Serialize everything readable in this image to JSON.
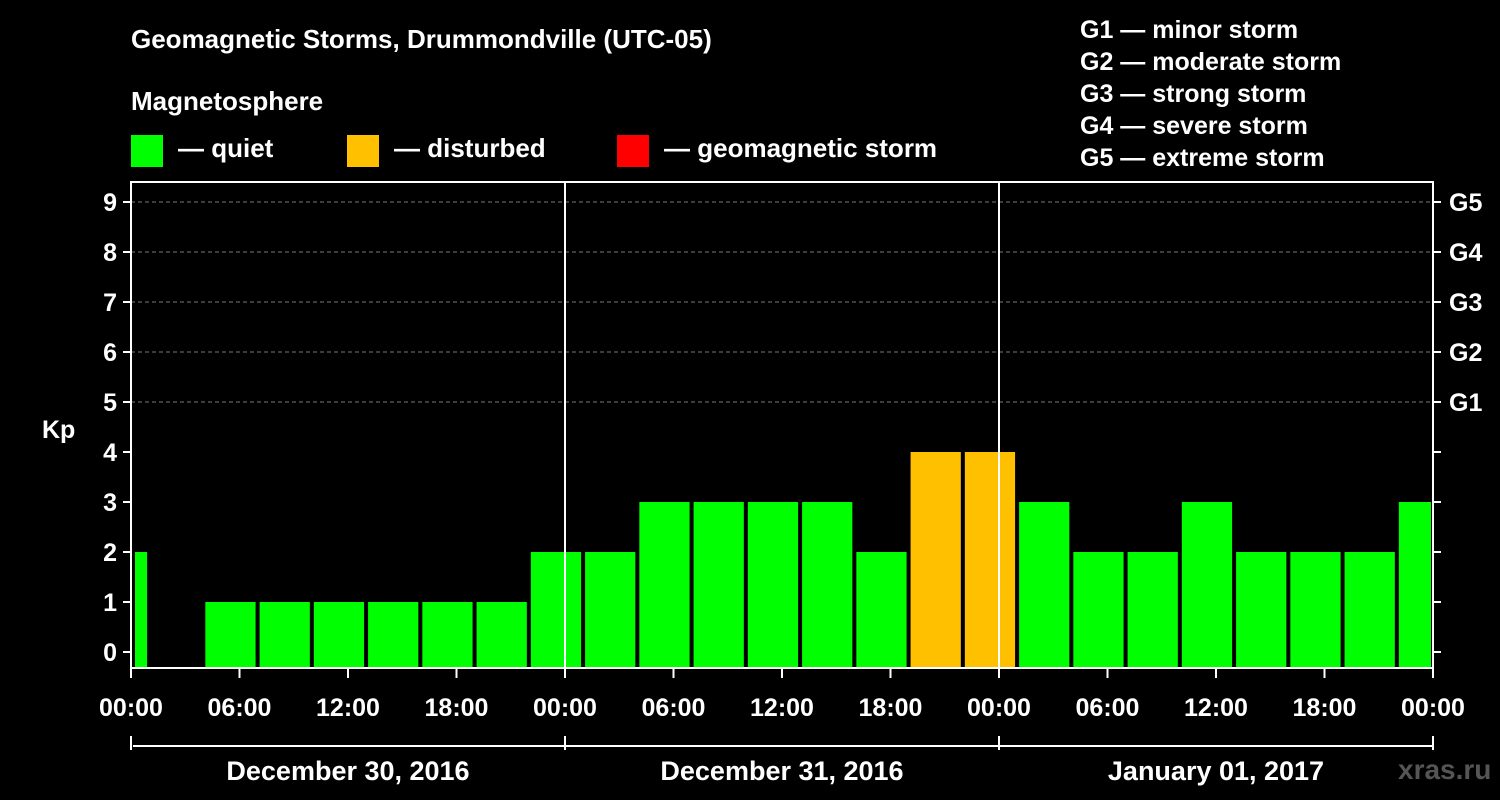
{
  "title": "Geomagnetic Storms, Drummondville (UTC-05)",
  "magnetosphere_label": "Magnetosphere",
  "legend": [
    {
      "label": "— quiet",
      "color": "#00ff00"
    },
    {
      "label": "— disturbed",
      "color": "#ffc000"
    },
    {
      "label": "— geomagnetic storm",
      "color": "#ff0000"
    }
  ],
  "g_legend": [
    "G1 — minor storm",
    "G2 — moderate storm",
    "G3 — strong storm",
    "G4 — severe storm",
    "G5 — extreme storm"
  ],
  "watermark": "xras.ru",
  "chart_data": {
    "type": "bar",
    "ylabel": "Kp",
    "ylim": [
      0,
      9
    ],
    "y_ticks": [
      "0",
      "1",
      "2",
      "3",
      "4",
      "5",
      "6",
      "7",
      "8",
      "9"
    ],
    "right_ticks": [
      {
        "value": 5,
        "label": "G1"
      },
      {
        "value": 6,
        "label": "G2"
      },
      {
        "value": 7,
        "label": "G3"
      },
      {
        "value": 8,
        "label": "G4"
      },
      {
        "value": 9,
        "label": "G5"
      }
    ],
    "grid": "dashed horizontal lines at Kp 5 to 9",
    "x_range_hours": [
      0,
      72
    ],
    "x_tick_labels": [
      "00:00",
      "06:00",
      "12:00",
      "18:00",
      "00:00",
      "06:00",
      "12:00",
      "18:00",
      "00:00",
      "06:00",
      "12:00",
      "18:00",
      "00:00"
    ],
    "day_labels": [
      "December 30, 2016",
      "December 31, 2016",
      "January 01, 2017"
    ],
    "bars": [
      {
        "start": 0,
        "end": 1,
        "kp": 2,
        "level": "quiet"
      },
      {
        "start": 4,
        "end": 7,
        "kp": 1,
        "level": "quiet"
      },
      {
        "start": 7,
        "end": 10,
        "kp": 1,
        "level": "quiet"
      },
      {
        "start": 10,
        "end": 13,
        "kp": 1,
        "level": "quiet"
      },
      {
        "start": 13,
        "end": 16,
        "kp": 1,
        "level": "quiet"
      },
      {
        "start": 16,
        "end": 19,
        "kp": 1,
        "level": "quiet"
      },
      {
        "start": 19,
        "end": 22,
        "kp": 1,
        "level": "quiet"
      },
      {
        "start": 22,
        "end": 25,
        "kp": 2,
        "level": "quiet"
      },
      {
        "start": 25,
        "end": 28,
        "kp": 2,
        "level": "quiet"
      },
      {
        "start": 28,
        "end": 31,
        "kp": 3,
        "level": "quiet"
      },
      {
        "start": 31,
        "end": 34,
        "kp": 3,
        "level": "quiet"
      },
      {
        "start": 34,
        "end": 37,
        "kp": 3,
        "level": "quiet"
      },
      {
        "start": 37,
        "end": 40,
        "kp": 3,
        "level": "quiet"
      },
      {
        "start": 40,
        "end": 43,
        "kp": 2,
        "level": "quiet"
      },
      {
        "start": 43,
        "end": 46,
        "kp": 4,
        "level": "disturbed"
      },
      {
        "start": 46,
        "end": 49,
        "kp": 4,
        "level": "disturbed"
      },
      {
        "start": 49,
        "end": 52,
        "kp": 3,
        "level": "quiet"
      },
      {
        "start": 52,
        "end": 55,
        "kp": 2,
        "level": "quiet"
      },
      {
        "start": 55,
        "end": 58,
        "kp": 2,
        "level": "quiet"
      },
      {
        "start": 58,
        "end": 61,
        "kp": 3,
        "level": "quiet"
      },
      {
        "start": 61,
        "end": 64,
        "kp": 2,
        "level": "quiet"
      },
      {
        "start": 64,
        "end": 67,
        "kp": 2,
        "level": "quiet"
      },
      {
        "start": 67,
        "end": 70,
        "kp": 2,
        "level": "quiet"
      },
      {
        "start": 70,
        "end": 72,
        "kp": 3,
        "level": "quiet"
      }
    ],
    "colors": {
      "quiet": "#00ff00",
      "disturbed": "#ffc000",
      "storm": "#ff0000"
    }
  }
}
